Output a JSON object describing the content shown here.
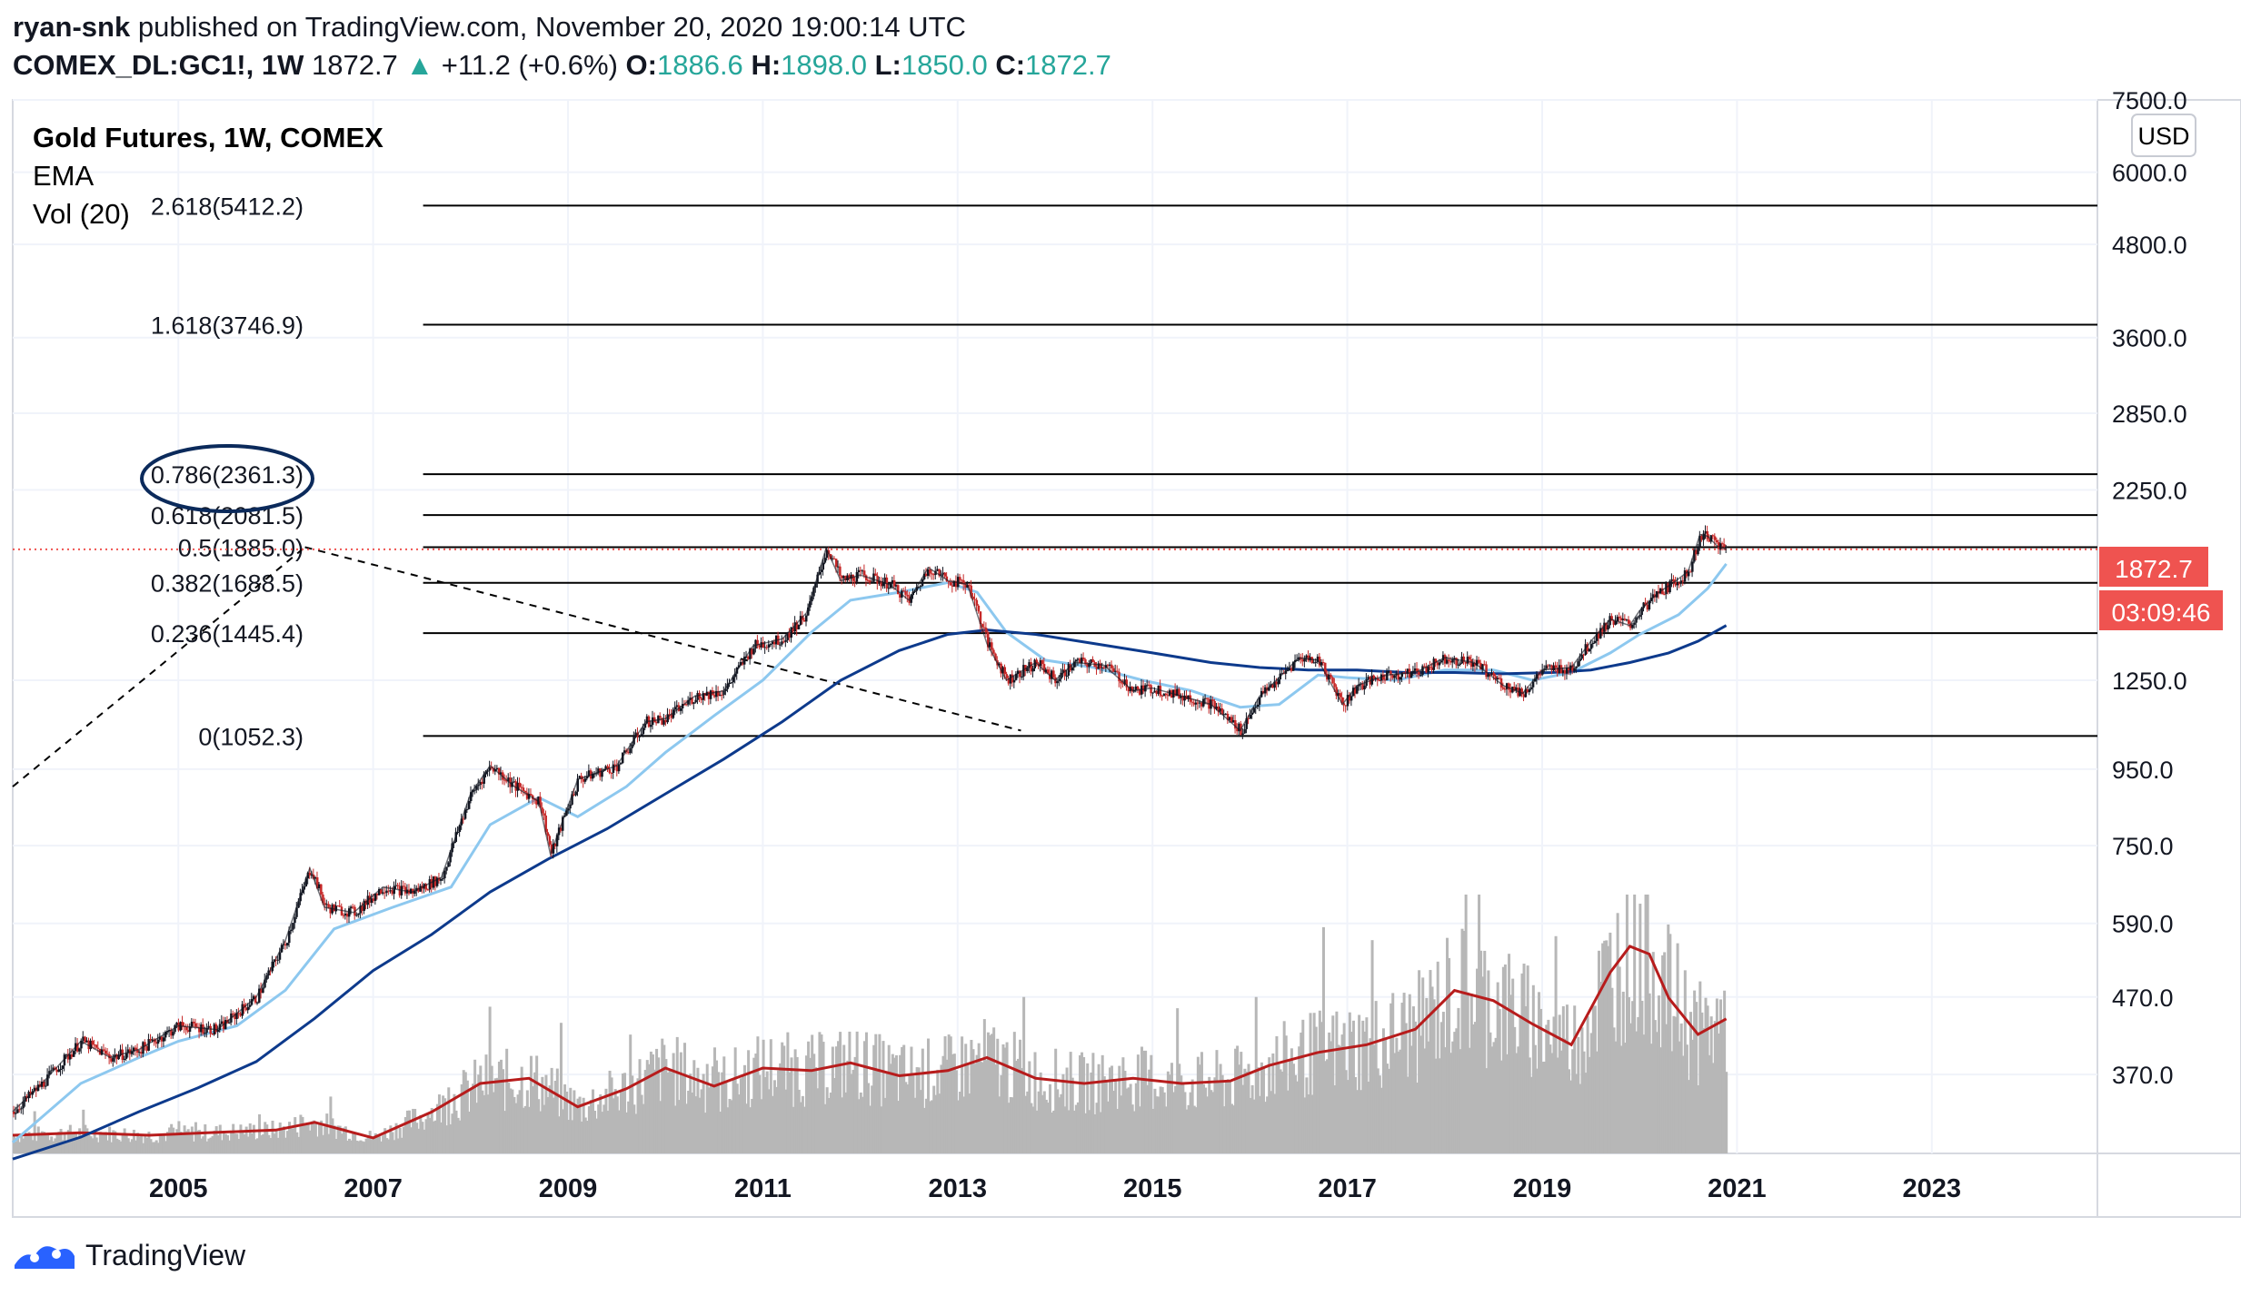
{
  "header": {
    "line1_author": "ryan-snk",
    "line1_rest": "published on TradingView.com, November 20, 2020 19:00:14 UTC",
    "symbol": "COMEX_DL:GC1!, 1W",
    "last": "1872.7",
    "arrow": "▲",
    "change": "+11.2 (+0.6%)",
    "o_label": "O:",
    "o_value": "1886.6",
    "h_label": "H:",
    "h_value": "1898.0",
    "l_label": "L:",
    "l_value": "1850.0",
    "c_label": "C:",
    "c_value": "1872.7"
  },
  "legend": {
    "title": "Gold Futures, 1W, COMEX",
    "ema": "EMA",
    "vol": "Vol (20)"
  },
  "currency_button": "USD",
  "price_tag": "1872.7",
  "countdown_tag": "03:09:46",
  "footer": {
    "brand": "TradingView"
  },
  "colors": {
    "up": "#26a69a",
    "price_tag": "#ef5350",
    "ema_fast": "#8dc8ef",
    "ema_slow": "#0d3a8c",
    "volume": "#b7b7b7",
    "volume_ma": "#b71c1c",
    "fib_lines": "#000000",
    "annotation_ellipse": "#0b2a5b"
  },
  "chart_data": {
    "type": "line",
    "y_scale": "log",
    "ylim": [
      290,
      7500
    ],
    "xlim": [
      2003.3,
      2024.7
    ],
    "y_ticks": [
      "7500.0",
      "6000.0",
      "4800.0",
      "3600.0",
      "2850.0",
      "2250.0",
      "1250.0",
      "950.0",
      "750.0",
      "590.0",
      "470.0",
      "370.0"
    ],
    "y_tick_values": [
      7500,
      6000,
      4800,
      3600,
      2850,
      2250,
      1250,
      950,
      750,
      590,
      470,
      370
    ],
    "x_ticks": [
      "2005",
      "2007",
      "2009",
      "2011",
      "2013",
      "2015",
      "2017",
      "2019",
      "2021",
      "2023"
    ],
    "x_tick_values": [
      2005,
      2007,
      2009,
      2011,
      2013,
      2015,
      2017,
      2019,
      2021,
      2023
    ],
    "fib_levels": [
      {
        "label": "2.618(5412.2)",
        "value": 5412.2
      },
      {
        "label": "1.618(3746.9)",
        "value": 3746.9
      },
      {
        "label": "0.786(2361.3)",
        "value": 2361.3
      },
      {
        "label": "0.618(2081.5)",
        "value": 2081.5
      },
      {
        "label": "0.5(1885.0)",
        "value": 1885.0
      },
      {
        "label": "0.382(1688.5)",
        "value": 1688.5
      },
      {
        "label": "0.236(1445.4)",
        "value": 1445.4
      },
      {
        "label": "0(1052.3)",
        "value": 1052.3
      }
    ],
    "fib_start": 2006.3,
    "fib_end": 2024.7,
    "highlighted_level": "0.786(2361.3)",
    "trend_lines": [
      {
        "name": "",
        "x": [
          2003.3,
          2006.3
        ],
        "y": [
          900,
          1885
        ]
      },
      {
        "name": "",
        "x": [
          2006.3,
          2013.65
        ],
        "y": [
          1885,
          1070
        ]
      }
    ],
    "last_price": 1872.7,
    "price_series": {
      "name": "",
      "x": [
        2003.3,
        2003.6,
        2004.0,
        2004.3,
        2004.6,
        2005.0,
        2005.4,
        2005.8,
        2006.1,
        2006.35,
        2006.5,
        2006.8,
        2007.1,
        2007.4,
        2007.7,
        2008.0,
        2008.2,
        2008.45,
        2008.7,
        2008.82,
        2009.1,
        2009.5,
        2009.8,
        2010.0,
        2010.3,
        2010.6,
        2010.9,
        2011.2,
        2011.45,
        2011.65,
        2011.8,
        2012.0,
        2012.3,
        2012.5,
        2012.7,
        2012.9,
        2013.1,
        2013.3,
        2013.5,
        2013.8,
        2014.0,
        2014.2,
        2014.5,
        2014.8,
        2015.0,
        2015.3,
        2015.6,
        2015.9,
        2016.1,
        2016.3,
        2016.5,
        2016.7,
        2016.95,
        2017.1,
        2017.4,
        2017.7,
        2018.0,
        2018.3,
        2018.6,
        2018.8,
        2019.0,
        2019.3,
        2019.5,
        2019.7,
        2019.9,
        2020.0,
        2020.2,
        2020.35,
        2020.5,
        2020.62,
        2020.7,
        2020.8,
        2020.89
      ],
      "y": [
        330,
        360,
        410,
        390,
        400,
        430,
        425,
        470,
        560,
        700,
        620,
        610,
        660,
        650,
        680,
        880,
        960,
        900,
        860,
        730,
        920,
        960,
        1100,
        1110,
        1190,
        1210,
        1390,
        1420,
        1540,
        1880,
        1700,
        1730,
        1680,
        1600,
        1770,
        1700,
        1680,
        1400,
        1250,
        1320,
        1250,
        1320,
        1310,
        1210,
        1220,
        1190,
        1160,
        1070,
        1190,
        1260,
        1340,
        1330,
        1160,
        1230,
        1270,
        1280,
        1340,
        1320,
        1230,
        1200,
        1290,
        1300,
        1410,
        1510,
        1480,
        1550,
        1640,
        1690,
        1750,
        1960,
        1950,
        1890,
        1872.7
      ]
    },
    "ema_fast": {
      "name": "",
      "x": [
        2003.3,
        2004.0,
        2004.6,
        2005.0,
        2005.6,
        2006.1,
        2006.6,
        2007.2,
        2007.8,
        2008.2,
        2008.7,
        2009.1,
        2009.6,
        2010.0,
        2010.5,
        2011.0,
        2011.5,
        2011.9,
        2012.4,
        2012.9,
        2013.2,
        2013.5,
        2013.9,
        2014.4,
        2014.9,
        2015.4,
        2015.9,
        2016.3,
        2016.7,
        2017.0,
        2017.5,
        2018.0,
        2018.5,
        2018.9,
        2019.3,
        2019.7,
        2020.0,
        2020.4,
        2020.7,
        2020.89
      ],
      "y": [
        300,
        360,
        390,
        410,
        430,
        480,
        580,
        620,
        660,
        800,
        870,
        820,
        900,
        1000,
        1120,
        1250,
        1450,
        1600,
        1640,
        1690,
        1640,
        1450,
        1330,
        1300,
        1250,
        1210,
        1150,
        1160,
        1270,
        1260,
        1250,
        1290,
        1290,
        1250,
        1280,
        1360,
        1440,
        1530,
        1660,
        1790
      ]
    },
    "ema_slow": {
      "name": "",
      "x": [
        2003.3,
        2004.0,
        2004.6,
        2005.2,
        2005.8,
        2006.4,
        2007.0,
        2007.6,
        2008.2,
        2008.8,
        2009.4,
        2010.0,
        2010.6,
        2011.2,
        2011.8,
        2012.4,
        2012.9,
        2013.3,
        2013.8,
        2014.4,
        2015.0,
        2015.6,
        2016.1,
        2016.6,
        2017.1,
        2017.6,
        2018.1,
        2018.6,
        2019.1,
        2019.5,
        2019.9,
        2020.3,
        2020.6,
        2020.89
      ],
      "y": [
        285,
        305,
        330,
        355,
        385,
        440,
        510,
        570,
        650,
        720,
        790,
        880,
        980,
        1100,
        1250,
        1370,
        1440,
        1460,
        1440,
        1400,
        1360,
        1320,
        1300,
        1290,
        1290,
        1280,
        1280,
        1275,
        1280,
        1290,
        1320,
        1360,
        1410,
        1480
      ]
    },
    "volume_ma": {
      "name": "",
      "x": [
        2003.3,
        2004.0,
        2004.7,
        2005.3,
        2006.0,
        2006.4,
        2007.0,
        2007.6,
        2008.1,
        2008.6,
        2009.1,
        2009.6,
        2010.0,
        2010.5,
        2011.0,
        2011.5,
        2011.9,
        2012.4,
        2012.9,
        2013.3,
        2013.8,
        2014.3,
        2014.8,
        2015.3,
        2015.8,
        2016.2,
        2016.7,
        2017.2,
        2017.7,
        2018.1,
        2018.5,
        2018.9,
        2019.3,
        2019.7,
        2019.9,
        2020.1,
        2020.3,
        2020.6,
        2020.89
      ],
      "y": [
        0.07,
        0.08,
        0.07,
        0.08,
        0.09,
        0.12,
        0.06,
        0.16,
        0.27,
        0.29,
        0.18,
        0.25,
        0.33,
        0.26,
        0.33,
        0.32,
        0.35,
        0.3,
        0.32,
        0.37,
        0.29,
        0.27,
        0.29,
        0.27,
        0.28,
        0.34,
        0.39,
        0.42,
        0.48,
        0.63,
        0.59,
        0.5,
        0.42,
        0.7,
        0.8,
        0.77,
        0.6,
        0.46,
        0.52
      ]
    }
  }
}
